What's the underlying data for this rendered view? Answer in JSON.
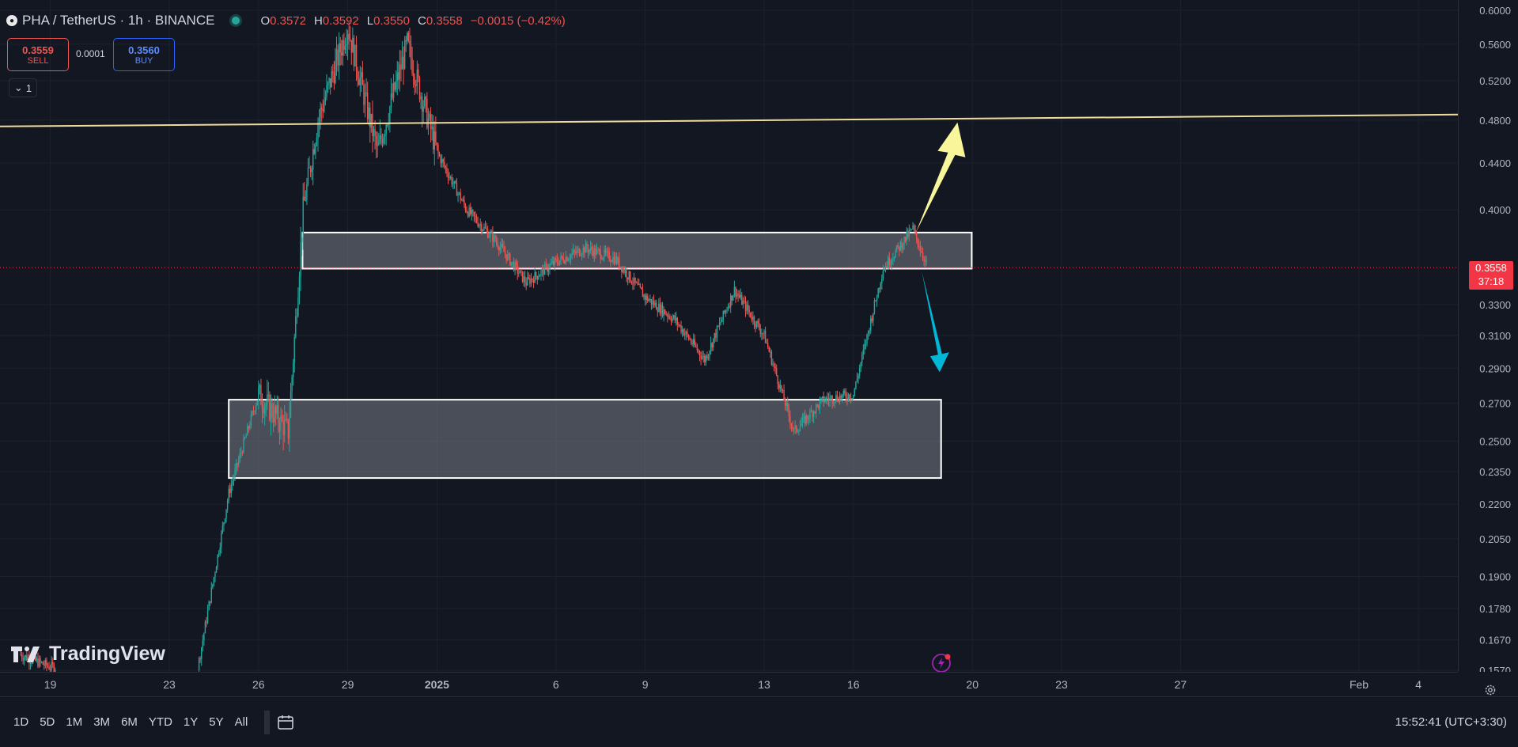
{
  "header": {
    "symbol": "PHA / TetherUS · 1h · BINANCE",
    "symbol_icon": "pha-coin-icon",
    "open_label": "O",
    "open": "0.3572",
    "high_label": "H",
    "high": "0.3592",
    "low_label": "L",
    "low": "0.3550",
    "close_label": "C",
    "close": "0.3558",
    "change": "−0.0015 (−0.42%)"
  },
  "trade": {
    "sell_price": "0.3559",
    "sell_label": "SELL",
    "spread": "0.0001",
    "buy_price": "0.3560",
    "buy_label": "BUY"
  },
  "indicators_toggle": {
    "count": "1",
    "icon": "chevron-down-icon"
  },
  "price_axis": {
    "labels": [
      "0.6000",
      "0.5600",
      "0.5200",
      "0.4800",
      "0.4400",
      "0.4000",
      "0.3300",
      "0.3100",
      "0.2900",
      "0.2700",
      "0.2500",
      "0.2350",
      "0.2200",
      "0.2050",
      "0.1900",
      "0.1780",
      "0.1670",
      "0.1570"
    ],
    "current_price": "0.3558",
    "countdown": "37:18"
  },
  "time_axis": {
    "labels": [
      "19",
      "23",
      "26",
      "29",
      "2025",
      "6",
      "9",
      "13",
      "16",
      "20",
      "23",
      "27",
      "Feb",
      "4"
    ]
  },
  "chart_data": {
    "type": "candlestick",
    "symbol": "PHA / TetherUS",
    "interval": "1h",
    "exchange": "BINANCE",
    "y_scale": "log",
    "ylim": [
      0.157,
      0.6
    ],
    "current_price": 0.3558,
    "approx_price_path": [
      {
        "x": "Dec 18",
        "y": 0.162
      },
      {
        "x": "Dec 19",
        "y": 0.158
      },
      {
        "x": "Dec 24",
        "y": 0.16
      },
      {
        "x": "Dec 25",
        "y": 0.225
      },
      {
        "x": "Dec 26",
        "y": 0.275
      },
      {
        "x": "Dec 27",
        "y": 0.255
      },
      {
        "x": "Dec 27.5",
        "y": 0.4
      },
      {
        "x": "Dec 28",
        "y": 0.48
      },
      {
        "x": "Dec 29",
        "y": 0.58
      },
      {
        "x": "Dec 30",
        "y": 0.45
      },
      {
        "x": "Dec 31",
        "y": 0.56
      },
      {
        "x": "Jan 1",
        "y": 0.45
      },
      {
        "x": "Jan 2",
        "y": 0.4
      },
      {
        "x": "Jan 3",
        "y": 0.375
      },
      {
        "x": "Jan 4",
        "y": 0.345
      },
      {
        "x": "Jan 5",
        "y": 0.36
      },
      {
        "x": "Jan 6",
        "y": 0.37
      },
      {
        "x": "Jan 7",
        "y": 0.362
      },
      {
        "x": "Jan 8",
        "y": 0.335
      },
      {
        "x": "Jan 9",
        "y": 0.32
      },
      {
        "x": "Jan 10",
        "y": 0.295
      },
      {
        "x": "Jan 11",
        "y": 0.34
      },
      {
        "x": "Jan 12",
        "y": 0.31
      },
      {
        "x": "Jan 13",
        "y": 0.255
      },
      {
        "x": "Jan 14",
        "y": 0.272
      },
      {
        "x": "Jan 15",
        "y": 0.275
      },
      {
        "x": "Jan 16",
        "y": 0.355
      },
      {
        "x": "Jan 17",
        "y": 0.385
      },
      {
        "x": "Jan 17.5",
        "y": 0.3558
      }
    ],
    "drawings": {
      "horizontal_line_price": 0.48,
      "upper_zone": [
        0.355,
        0.382
      ],
      "lower_zone": [
        0.232,
        0.272
      ],
      "arrow_up_target": 0.48,
      "arrow_down_target": 0.29
    }
  },
  "watermark": {
    "text": "TradingView",
    "icon": "tradingview-logo-icon"
  },
  "bottom": {
    "ranges": [
      "1D",
      "5D",
      "1M",
      "3M",
      "6M",
      "YTD",
      "1Y",
      "5Y",
      "All"
    ],
    "date_range_icon": "date-range-icon",
    "clock": "15:52:41 (UTC+3:30)"
  },
  "settings_icon": "gear-icon",
  "alert_icon": "lightning-alert-icon",
  "colors": {
    "background": "#131722",
    "up": "#26a69a",
    "down": "#ef5350",
    "line": "#f0dc9a",
    "arrow_up": "#f9f59a",
    "arrow_down": "#00b7d8",
    "price_tag": "#f23645"
  }
}
